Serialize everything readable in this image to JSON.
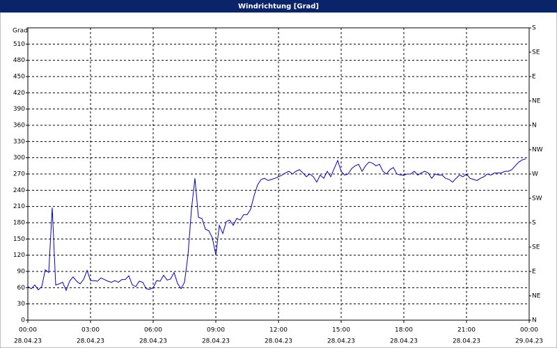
{
  "chart_data": {
    "type": "line",
    "title": "Windrichtung [Grad]",
    "y_label": "Grad",
    "color": "#0000cc",
    "grid": true,
    "xlim": [
      0,
      1440
    ],
    "ylim": [
      0,
      540
    ],
    "y2lim": [
      0,
      540
    ],
    "xticks": [
      {
        "value": 0,
        "label": "00:00",
        "date": "28.04.23"
      },
      {
        "value": 180,
        "label": "03:00",
        "date": "28.04.23"
      },
      {
        "value": 360,
        "label": "06:00",
        "date": "28.04.23"
      },
      {
        "value": 540,
        "label": "09:00",
        "date": "28.04.23"
      },
      {
        "value": 720,
        "label": "12:00",
        "date": "28.04.23"
      },
      {
        "value": 900,
        "label": "15:00",
        "date": "28.04.23"
      },
      {
        "value": 1080,
        "label": "18:00",
        "date": "28.04.23"
      },
      {
        "value": 1260,
        "label": "21:00",
        "date": "28.04.23"
      },
      {
        "value": 1440,
        "label": "00:00",
        "date": "29.04.23"
      }
    ],
    "yticks": [
      0,
      30,
      60,
      90,
      120,
      150,
      180,
      210,
      240,
      270,
      300,
      330,
      360,
      390,
      420,
      450,
      480,
      510
    ],
    "y2ticks": [
      {
        "value": 0,
        "label": "N"
      },
      {
        "value": 45,
        "label": "NE"
      },
      {
        "value": 90,
        "label": "E"
      },
      {
        "value": 135,
        "label": "SE"
      },
      {
        "value": 180,
        "label": "S"
      },
      {
        "value": 225,
        "label": "SW"
      },
      {
        "value": 270,
        "label": "W"
      },
      {
        "value": 315,
        "label": "NW"
      },
      {
        "value": 360,
        "label": "N"
      },
      {
        "value": 405,
        "label": "NE"
      },
      {
        "value": 450,
        "label": "E"
      },
      {
        "value": 495,
        "label": "SE"
      },
      {
        "value": 540,
        "label": "S"
      }
    ],
    "x": [
      0,
      10,
      20,
      30,
      40,
      50,
      60,
      70,
      80,
      90,
      100,
      110,
      120,
      130,
      140,
      150,
      160,
      170,
      180,
      190,
      200,
      210,
      220,
      230,
      240,
      250,
      260,
      270,
      280,
      290,
      300,
      310,
      320,
      330,
      340,
      350,
      360,
      370,
      380,
      390,
      400,
      410,
      420,
      430,
      440,
      450,
      460,
      470,
      480,
      490,
      500,
      510,
      520,
      530,
      540,
      550,
      560,
      570,
      580,
      590,
      600,
      610,
      620,
      630,
      640,
      650,
      660,
      670,
      680,
      690,
      700,
      710,
      720,
      730,
      740,
      750,
      760,
      770,
      780,
      790,
      800,
      810,
      820,
      830,
      840,
      850,
      860,
      870,
      880,
      890,
      900,
      910,
      920,
      930,
      940,
      950,
      960,
      970,
      980,
      990,
      1000,
      1010,
      1020,
      1030,
      1040,
      1050,
      1060,
      1070,
      1080,
      1090,
      1100,
      1110,
      1120,
      1130,
      1140,
      1150,
      1160,
      1170,
      1180,
      1190,
      1200,
      1210,
      1220,
      1230,
      1240,
      1250,
      1260,
      1270,
      1280,
      1290,
      1300,
      1310,
      1320,
      1330,
      1340,
      1350,
      1360,
      1370,
      1380,
      1390,
      1400,
      1410,
      1420,
      1430
    ],
    "values": [
      62,
      58,
      65,
      56,
      62,
      93,
      88,
      208,
      65,
      67,
      70,
      55,
      72,
      80,
      72,
      67,
      75,
      92,
      73,
      73,
      72,
      78,
      75,
      72,
      70,
      73,
      70,
      75,
      75,
      82,
      65,
      62,
      72,
      70,
      58,
      57,
      60,
      73,
      72,
      83,
      74,
      76,
      88,
      68,
      58,
      70,
      120,
      205,
      262,
      190,
      188,
      168,
      165,
      152,
      120,
      175,
      160,
      182,
      185,
      175,
      188,
      185,
      195,
      195,
      205,
      230,
      250,
      260,
      262,
      258,
      260,
      262,
      265,
      268,
      272,
      275,
      270,
      275,
      278,
      272,
      265,
      270,
      265,
      255,
      268,
      262,
      275,
      265,
      280,
      295,
      275,
      268,
      270,
      280,
      285,
      288,
      275,
      285,
      292,
      290,
      285,
      288,
      275,
      270,
      278,
      282,
      270,
      268,
      268,
      270,
      270,
      275,
      268,
      272,
      275,
      272,
      262,
      270,
      268,
      268,
      262,
      260,
      255,
      262,
      268,
      265,
      270,
      262,
      260,
      258,
      262,
      265,
      270,
      268,
      272,
      272,
      272,
      275,
      275,
      278,
      285,
      292,
      296,
      298
    ]
  }
}
